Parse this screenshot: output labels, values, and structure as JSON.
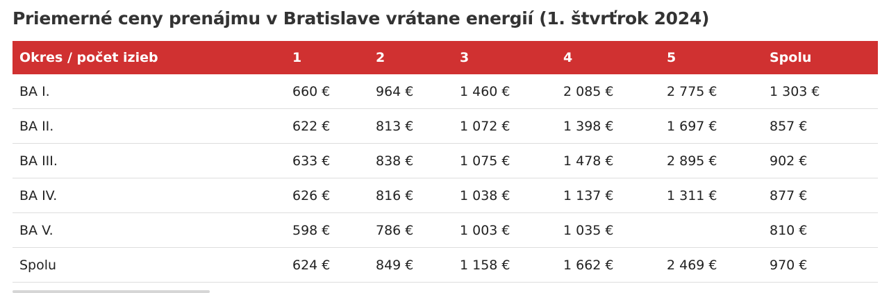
{
  "title": "Priemerné ceny prenájmu v Bratislave vrátane energií (1. štvrťrok 2024)",
  "table": {
    "header": [
      "Okres / počet izieb",
      "1",
      "2",
      "3",
      "4",
      "5",
      "Spolu"
    ],
    "rows": [
      [
        "BA I.",
        "660 €",
        "964 €",
        "1 460 €",
        "2 085 €",
        "2 775 €",
        "1 303 €"
      ],
      [
        "BA II.",
        "622 €",
        "813 €",
        "1 072 €",
        "1 398 €",
        "1 697 €",
        "857 €"
      ],
      [
        "BA III.",
        "633 €",
        "838 €",
        "1 075 €",
        "1 478 €",
        "2 895 €",
        "902 €"
      ],
      [
        "BA IV.",
        "626 €",
        "816 €",
        "1 038 €",
        "1 137 €",
        "1 311 €",
        "877 €"
      ],
      [
        "BA V.",
        "598 €",
        "786 €",
        "1 003 €",
        "1 035 €",
        null,
        "810 €"
      ],
      [
        "Spolu",
        "624 €",
        "849 €",
        "1 158 €",
        "1 662 €",
        "2 469 €",
        "970 €"
      ]
    ]
  }
}
